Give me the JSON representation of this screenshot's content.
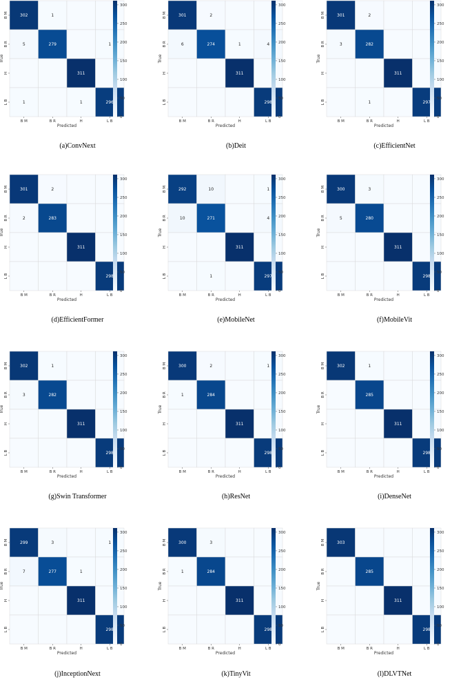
{
  "colormap": [
    "#f7fbff",
    "#deebf7",
    "#c6dbef",
    "#9ecae1",
    "#6baed6",
    "#4292c6",
    "#2171b5",
    "#08519c",
    "#08306b"
  ],
  "chart_data": [
    {
      "type": "heatmap",
      "caption": "(a)ConvNext",
      "xlabel": "Predicted",
      "ylabel": "True",
      "labels": [
        "B M",
        "B R",
        "H",
        "L B"
      ],
      "values": [
        [
          302,
          1,
          0,
          0
        ],
        [
          5,
          279,
          0,
          1
        ],
        [
          0,
          0,
          311,
          0
        ],
        [
          1,
          0,
          1,
          296
        ]
      ],
      "colorbar": {
        "range": [
          0,
          311
        ],
        "ticks": [
          0,
          50,
          100,
          150,
          200,
          250,
          300
        ]
      }
    },
    {
      "type": "heatmap",
      "caption": "(b)Deit",
      "xlabel": "Predicted",
      "ylabel": "True",
      "labels": [
        "B M",
        "B R",
        "H",
        "L B"
      ],
      "values": [
        [
          301,
          2,
          0,
          0
        ],
        [
          6,
          274,
          1,
          4
        ],
        [
          0,
          0,
          311,
          0
        ],
        [
          0,
          0,
          0,
          298
        ]
      ],
      "colorbar": {
        "range": [
          0,
          311
        ],
        "ticks": [
          0,
          50,
          100,
          150,
          200,
          250,
          300
        ]
      }
    },
    {
      "type": "heatmap",
      "caption": "(c)EfficientNet",
      "xlabel": "Predicted",
      "ylabel": "True",
      "labels": [
        "B M",
        "B R",
        "H",
        "L B"
      ],
      "values": [
        [
          301,
          2,
          0,
          0
        ],
        [
          3,
          282,
          0,
          0
        ],
        [
          0,
          0,
          311,
          0
        ],
        [
          0,
          1,
          0,
          297
        ]
      ],
      "colorbar": {
        "range": [
          0,
          311
        ],
        "ticks": [
          0,
          50,
          100,
          150,
          200,
          250,
          300
        ]
      }
    },
    {
      "type": "heatmap",
      "caption": "(d)EfficientFormer",
      "xlabel": "Predicted",
      "ylabel": "True",
      "labels": [
        "B M",
        "B R",
        "H",
        "L B"
      ],
      "values": [
        [
          301,
          2,
          0,
          0
        ],
        [
          2,
          283,
          0,
          0
        ],
        [
          0,
          0,
          311,
          0
        ],
        [
          0,
          0,
          0,
          298
        ]
      ],
      "colorbar": {
        "range": [
          0,
          311
        ],
        "ticks": [
          0,
          50,
          100,
          150,
          200,
          250,
          300
        ]
      }
    },
    {
      "type": "heatmap",
      "caption": "(e)MobileNet",
      "xlabel": "Predicted",
      "ylabel": "True",
      "labels": [
        "B M",
        "B R",
        "H",
        "L B"
      ],
      "values": [
        [
          292,
          10,
          0,
          1
        ],
        [
          10,
          271,
          0,
          4
        ],
        [
          0,
          0,
          311,
          0
        ],
        [
          0,
          1,
          0,
          297
        ]
      ],
      "colorbar": {
        "range": [
          0,
          311
        ],
        "ticks": [
          0,
          50,
          100,
          150,
          200,
          250,
          300
        ]
      }
    },
    {
      "type": "heatmap",
      "caption": "(f)MobileVit",
      "xlabel": "Predicted",
      "ylabel": "True",
      "labels": [
        "B M",
        "B R",
        "H",
        "L B"
      ],
      "values": [
        [
          300,
          3,
          0,
          0
        ],
        [
          5,
          280,
          0,
          0
        ],
        [
          0,
          0,
          311,
          0
        ],
        [
          0,
          0,
          0,
          298
        ]
      ],
      "colorbar": {
        "range": [
          0,
          311
        ],
        "ticks": [
          0,
          50,
          100,
          150,
          200,
          250,
          300
        ]
      }
    },
    {
      "type": "heatmap",
      "caption": "(g)Swin Transformer",
      "xlabel": "Predicted",
      "ylabel": "True",
      "labels": [
        "B M",
        "B R",
        "H",
        "L B"
      ],
      "values": [
        [
          302,
          1,
          0,
          0
        ],
        [
          3,
          282,
          0,
          0
        ],
        [
          0,
          0,
          311,
          0
        ],
        [
          0,
          0,
          0,
          298
        ]
      ],
      "colorbar": {
        "range": [
          0,
          311
        ],
        "ticks": [
          0,
          50,
          100,
          150,
          200,
          250,
          300
        ]
      }
    },
    {
      "type": "heatmap",
      "caption": "(h)ResNet",
      "xlabel": "Predicted",
      "ylabel": "True",
      "labels": [
        "B M",
        "B R",
        "H",
        "L B"
      ],
      "values": [
        [
          300,
          2,
          0,
          1
        ],
        [
          1,
          284,
          0,
          0
        ],
        [
          0,
          0,
          311,
          0
        ],
        [
          0,
          0,
          0,
          298
        ]
      ],
      "colorbar": {
        "range": [
          0,
          311
        ],
        "ticks": [
          0,
          50,
          100,
          150,
          200,
          250,
          300
        ]
      }
    },
    {
      "type": "heatmap",
      "caption": "(i)DenseNet",
      "xlabel": "Predicted",
      "ylabel": "True",
      "labels": [
        "B M",
        "B R",
        "H",
        "L B"
      ],
      "values": [
        [
          302,
          1,
          0,
          0
        ],
        [
          0,
          285,
          0,
          0
        ],
        [
          0,
          0,
          311,
          0
        ],
        [
          0,
          0,
          0,
          298
        ]
      ],
      "colorbar": {
        "range": [
          0,
          311
        ],
        "ticks": [
          0,
          50,
          100,
          150,
          200,
          250,
          300
        ]
      }
    },
    {
      "type": "heatmap",
      "caption": "(j)InceptionNext",
      "xlabel": "Predicted",
      "ylabel": "True",
      "labels": [
        "B M",
        "B R",
        "H",
        "L B"
      ],
      "values": [
        [
          299,
          3,
          0,
          1
        ],
        [
          7,
          277,
          1,
          0
        ],
        [
          0,
          0,
          311,
          0
        ],
        [
          0,
          0,
          0,
          298
        ]
      ],
      "colorbar": {
        "range": [
          0,
          311
        ],
        "ticks": [
          0,
          50,
          100,
          150,
          200,
          250,
          300
        ]
      }
    },
    {
      "type": "heatmap",
      "caption": "(k)TinyVit",
      "xlabel": "Predicted",
      "ylabel": "True",
      "labels": [
        "B M",
        "B R",
        "H",
        "L B"
      ],
      "values": [
        [
          300,
          3,
          0,
          0
        ],
        [
          1,
          284,
          0,
          0
        ],
        [
          0,
          0,
          311,
          0
        ],
        [
          0,
          0,
          0,
          298
        ]
      ],
      "colorbar": {
        "range": [
          0,
          311
        ],
        "ticks": [
          0,
          50,
          100,
          150,
          200,
          250,
          300
        ]
      }
    },
    {
      "type": "heatmap",
      "caption": "(l)DLVTNet",
      "xlabel": "Predicted",
      "ylabel": "True",
      "labels": [
        "B M",
        "B R",
        "H",
        "L B"
      ],
      "values": [
        [
          303,
          0,
          0,
          0
        ],
        [
          0,
          285,
          0,
          0
        ],
        [
          0,
          0,
          311,
          0
        ],
        [
          0,
          0,
          0,
          298
        ]
      ],
      "colorbar": {
        "range": [
          0,
          311
        ],
        "ticks": [
          0,
          50,
          100,
          150,
          200,
          250,
          300
        ]
      }
    }
  ]
}
